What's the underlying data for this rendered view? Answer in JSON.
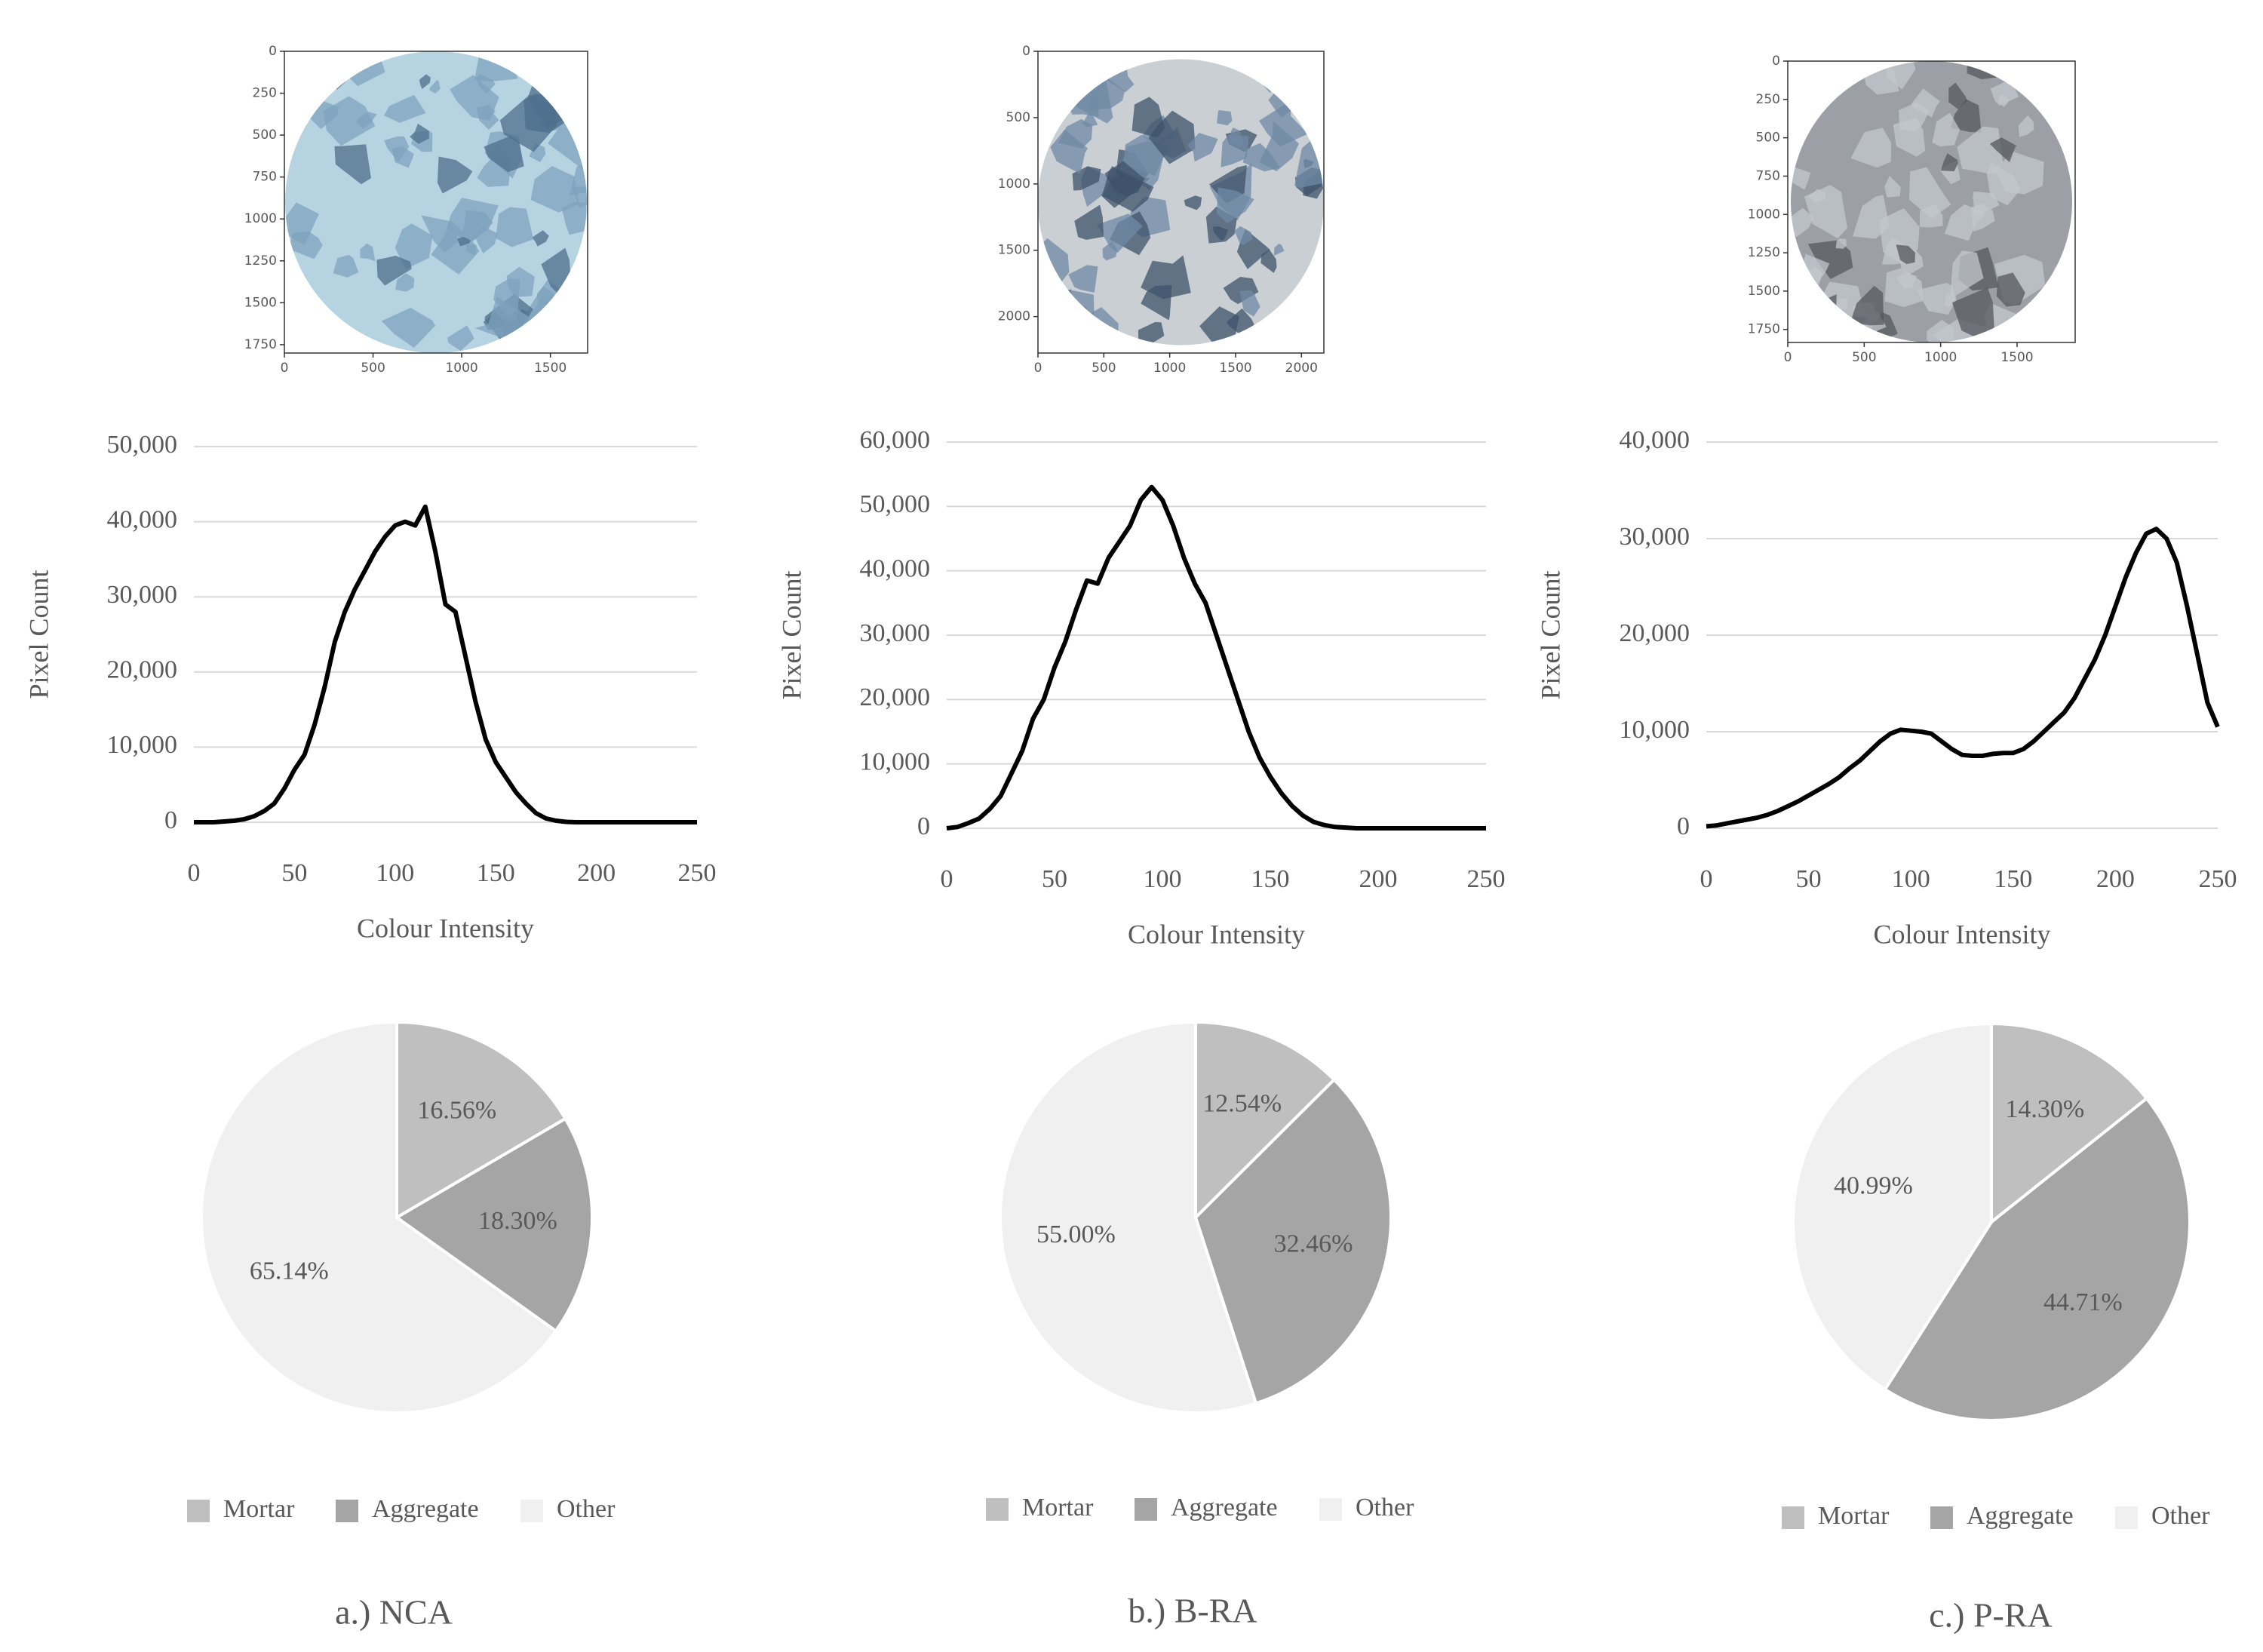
{
  "chart_data": [
    {
      "type": "image",
      "xlim": [
        0,
        1710
      ],
      "ylim": [
        0,
        1800
      ],
      "y_inverted": true,
      "xticks": [
        0,
        500,
        1000,
        1500
      ],
      "yticks": [
        0,
        250,
        500,
        750,
        1000,
        1250,
        1500,
        1750
      ]
    },
    {
      "type": "line",
      "y_label": "Pixel Count",
      "x_label": "Colour Intensity",
      "color": "#000000",
      "grid": true,
      "xlim": [
        0,
        250
      ],
      "xticks": [
        0,
        50,
        100,
        150,
        200,
        250
      ],
      "ylim": [
        0,
        50000
      ],
      "yticks": [
        0,
        {
          "value": 10000,
          "label": "10,000"
        },
        {
          "value": 20000,
          "label": "20,000"
        },
        {
          "value": 30000,
          "label": "30,000"
        },
        {
          "value": 40000,
          "label": "40,000"
        },
        {
          "value": 50000,
          "label": "50,000"
        }
      ],
      "x": [
        0,
        5,
        10,
        15,
        20,
        25,
        30,
        35,
        40,
        45,
        50,
        55,
        60,
        65,
        70,
        75,
        80,
        85,
        90,
        95,
        100,
        105,
        110,
        115,
        120,
        125,
        130,
        135,
        140,
        145,
        150,
        155,
        160,
        165,
        170,
        175,
        180,
        185,
        190,
        195,
        200,
        205,
        210,
        215,
        220,
        225,
        230,
        235,
        240,
        245,
        250
      ],
      "values": [
        0,
        0,
        0,
        100,
        200,
        400,
        800,
        1500,
        2500,
        4500,
        7000,
        9000,
        13000,
        18000,
        24000,
        28000,
        31000,
        33500,
        36000,
        38000,
        39500,
        40000,
        39500,
        42000,
        36000,
        29000,
        28000,
        22000,
        16000,
        11000,
        8000,
        6000,
        4000,
        2500,
        1200,
        500,
        200,
        50,
        0,
        0,
        0,
        0,
        0,
        0,
        0,
        0,
        0,
        0,
        0,
        0,
        0
      ]
    },
    {
      "type": "pie",
      "categories": [
        "Mortar",
        "Aggregate",
        "Other"
      ],
      "colors": [
        "#bfbfbf",
        "#a5a5a5",
        "#f0f0f0"
      ],
      "values": [
        16.56,
        18.3,
        65.14
      ],
      "value_labels": [
        "16.56%",
        "18.30%",
        "65.14%"
      ],
      "legend": "bottom"
    },
    {
      "type": "image",
      "xlim": [
        0,
        2170
      ],
      "ylim": [
        0,
        2275
      ],
      "y_inverted": true,
      "xticks": [
        0,
        500,
        1000,
        1500,
        2000
      ],
      "yticks": [
        0,
        500,
        1000,
        1500,
        2000
      ]
    },
    {
      "type": "line",
      "y_label": "Pixel Count",
      "x_label": "Colour Intensity",
      "color": "#000000",
      "grid": true,
      "xlim": [
        0,
        250
      ],
      "xticks": [
        0,
        50,
        100,
        150,
        200,
        250
      ],
      "ylim": [
        0,
        60000
      ],
      "yticks": [
        0,
        {
          "value": 10000,
          "label": "10,000"
        },
        {
          "value": 20000,
          "label": "20,000"
        },
        {
          "value": 30000,
          "label": "30,000"
        },
        {
          "value": 40000,
          "label": "40,000"
        },
        {
          "value": 50000,
          "label": "50,000"
        },
        {
          "value": 60000,
          "label": "60,000"
        }
      ],
      "x": [
        0,
        5,
        10,
        15,
        20,
        25,
        30,
        35,
        40,
        45,
        50,
        55,
        60,
        65,
        70,
        75,
        80,
        85,
        90,
        95,
        100,
        105,
        110,
        115,
        120,
        125,
        130,
        135,
        140,
        145,
        150,
        155,
        160,
        165,
        170,
        175,
        180,
        185,
        190,
        195,
        200,
        205,
        210,
        215,
        220,
        225,
        230,
        235,
        240,
        245,
        250
      ],
      "values": [
        0,
        200,
        800,
        1500,
        3000,
        5000,
        8500,
        12000,
        17000,
        20000,
        25000,
        29000,
        34000,
        38500,
        38000,
        42000,
        44500,
        47000,
        51000,
        53000,
        51000,
        47000,
        42000,
        38000,
        35000,
        30000,
        25000,
        20000,
        15000,
        11000,
        8000,
        5500,
        3500,
        2000,
        1000,
        500,
        200,
        100,
        0,
        0,
        0,
        0,
        0,
        0,
        0,
        0,
        0,
        0,
        0,
        0,
        0
      ]
    },
    {
      "type": "pie",
      "categories": [
        "Mortar",
        "Aggregate",
        "Other"
      ],
      "colors": [
        "#bfbfbf",
        "#a5a5a5",
        "#f0f0f0"
      ],
      "values": [
        12.54,
        32.46,
        55.0
      ],
      "value_labels": [
        "12.54%",
        "32.46%",
        "55.00%"
      ],
      "legend": "bottom"
    },
    {
      "type": "image",
      "xlim": [
        0,
        1880
      ],
      "ylim": [
        0,
        1835
      ],
      "y_inverted": true,
      "xticks": [
        0,
        500,
        1000,
        1500
      ],
      "yticks": [
        0,
        250,
        500,
        750,
        1000,
        1250,
        1500,
        1750
      ]
    },
    {
      "type": "line",
      "y_label": "Pixel Count",
      "x_label": "Colour Intensity",
      "color": "#000000",
      "grid": true,
      "xlim": [
        0,
        250
      ],
      "xticks": [
        0,
        50,
        100,
        150,
        200,
        250
      ],
      "ylim": [
        0,
        40000
      ],
      "yticks": [
        0,
        {
          "value": 10000,
          "label": "10,000"
        },
        {
          "value": 20000,
          "label": "20,000"
        },
        {
          "value": 30000,
          "label": "30,000"
        },
        {
          "value": 40000,
          "label": "40,000"
        }
      ],
      "x": [
        0,
        5,
        10,
        15,
        20,
        25,
        30,
        35,
        40,
        45,
        50,
        55,
        60,
        65,
        70,
        75,
        80,
        85,
        90,
        95,
        100,
        105,
        110,
        115,
        120,
        125,
        130,
        135,
        140,
        145,
        150,
        155,
        160,
        165,
        170,
        175,
        180,
        185,
        190,
        195,
        200,
        205,
        210,
        215,
        220,
        225,
        230,
        235,
        240,
        245,
        250
      ],
      "values": [
        200,
        300,
        500,
        700,
        900,
        1100,
        1400,
        1800,
        2300,
        2800,
        3400,
        4000,
        4600,
        5300,
        6200,
        7000,
        8000,
        9000,
        9800,
        10200,
        10100,
        10000,
        9800,
        9000,
        8200,
        7600,
        7500,
        7500,
        7700,
        7800,
        7800,
        8200,
        9000,
        10000,
        11000,
        12000,
        13500,
        15500,
        17500,
        20000,
        23000,
        26000,
        28500,
        30500,
        31000,
        30000,
        27500,
        23000,
        18000,
        13000,
        10500
      ]
    },
    {
      "type": "pie",
      "categories": [
        "Mortar",
        "Aggregate",
        "Other"
      ],
      "colors": [
        "#bfbfbf",
        "#a5a5a5",
        "#f0f0f0"
      ],
      "values": [
        14.3,
        44.71,
        40.99
      ],
      "value_labels": [
        "14.30%",
        "44.71%",
        "40.99%"
      ],
      "legend": "bottom"
    }
  ],
  "captions": [
    "a.) NCA",
    "b.) B-RA",
    "c.) P-RA"
  ]
}
